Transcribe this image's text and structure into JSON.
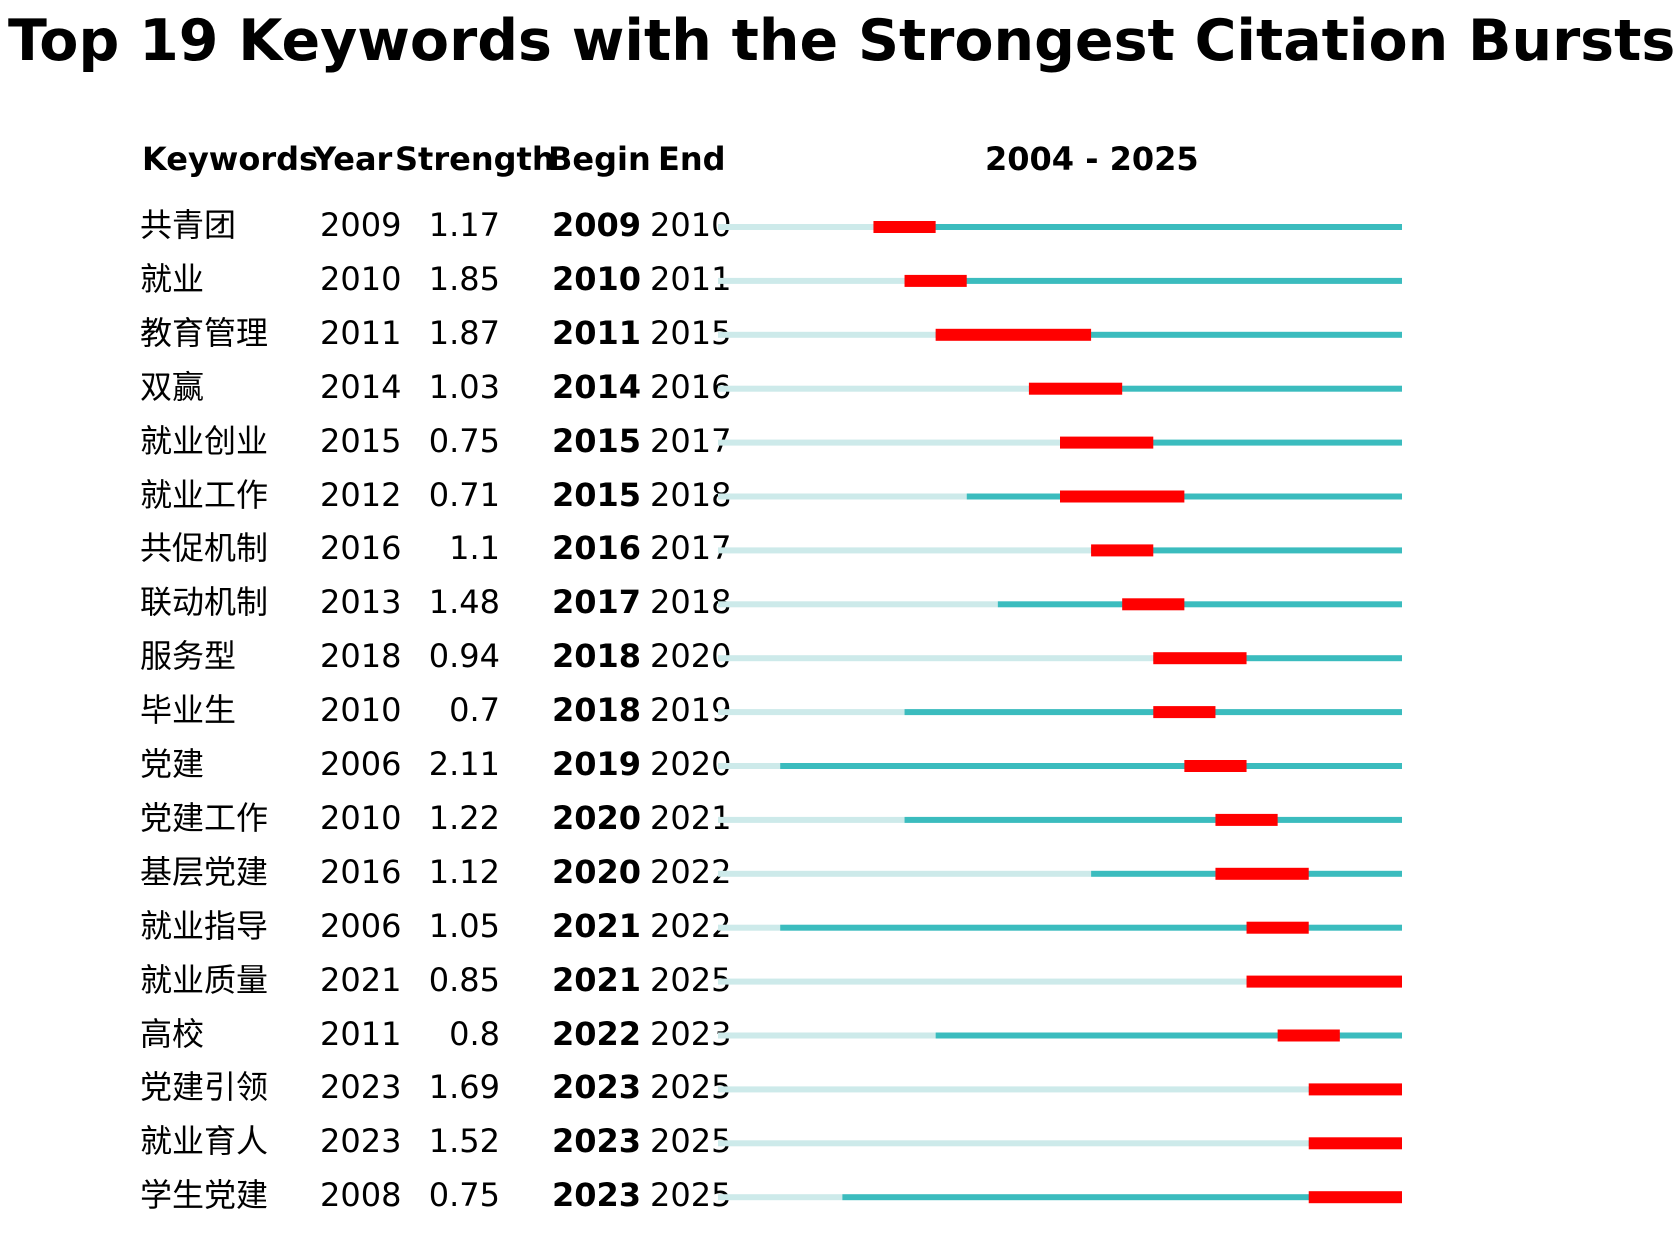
{
  "chart_data": {
    "type": "table",
    "title": "Top 19 Keywords with the Strongest Citation Bursts",
    "columns": [
      "Keywords",
      "Year",
      "Strength",
      "Begin",
      "End"
    ],
    "range_label": "2004 - 2025",
    "range": [
      2004,
      2025
    ],
    "colors": {
      "burst": "#ff0000",
      "active": "#3bbcbe",
      "inactive": "#cdeaea"
    },
    "rows": [
      {
        "keyword": "共青团",
        "year": "2009",
        "strength": "1.17",
        "begin": "2009",
        "end": "2010"
      },
      {
        "keyword": "就业",
        "year": "2010",
        "strength": "1.85",
        "begin": "2010",
        "end": "2011"
      },
      {
        "keyword": "教育管理",
        "year": "2011",
        "strength": "1.87",
        "begin": "2011",
        "end": "2015"
      },
      {
        "keyword": "双赢",
        "year": "2014",
        "strength": "1.03",
        "begin": "2014",
        "end": "2016"
      },
      {
        "keyword": "就业创业",
        "year": "2015",
        "strength": "0.75",
        "begin": "2015",
        "end": "2017"
      },
      {
        "keyword": "就业工作",
        "year": "2012",
        "strength": "0.71",
        "begin": "2015",
        "end": "2018"
      },
      {
        "keyword": "共促机制",
        "year": "2016",
        "strength": "1.1",
        "begin": "2016",
        "end": "2017"
      },
      {
        "keyword": "联动机制",
        "year": "2013",
        "strength": "1.48",
        "begin": "2017",
        "end": "2018"
      },
      {
        "keyword": "服务型",
        "year": "2018",
        "strength": "0.94",
        "begin": "2018",
        "end": "2020"
      },
      {
        "keyword": "毕业生",
        "year": "2010",
        "strength": "0.7",
        "begin": "2018",
        "end": "2019"
      },
      {
        "keyword": "党建",
        "year": "2006",
        "strength": "2.11",
        "begin": "2019",
        "end": "2020"
      },
      {
        "keyword": "党建工作",
        "year": "2010",
        "strength": "1.22",
        "begin": "2020",
        "end": "2021"
      },
      {
        "keyword": "基层党建",
        "year": "2016",
        "strength": "1.12",
        "begin": "2020",
        "end": "2022"
      },
      {
        "keyword": "就业指导",
        "year": "2006",
        "strength": "1.05",
        "begin": "2021",
        "end": "2022"
      },
      {
        "keyword": "就业质量",
        "year": "2021",
        "strength": "0.85",
        "begin": "2021",
        "end": "2025"
      },
      {
        "keyword": "高校",
        "year": "2011",
        "strength": "0.8",
        "begin": "2022",
        "end": "2023"
      },
      {
        "keyword": "党建引领",
        "year": "2023",
        "strength": "1.69",
        "begin": "2023",
        "end": "2025"
      },
      {
        "keyword": "就业育人",
        "year": "2023",
        "strength": "1.52",
        "begin": "2023",
        "end": "2025"
      },
      {
        "keyword": "学生党建",
        "year": "2008",
        "strength": "0.75",
        "begin": "2023",
        "end": "2025"
      }
    ]
  }
}
